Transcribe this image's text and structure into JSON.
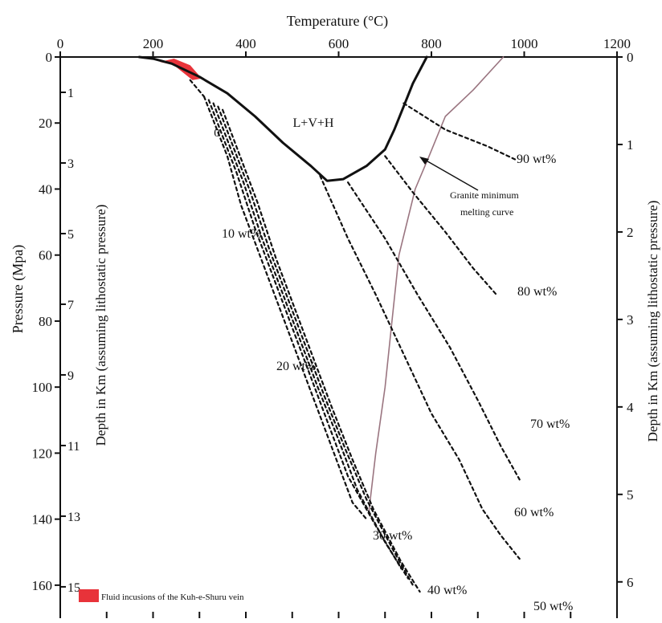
{
  "chart_data": {
    "type": "line",
    "title": "",
    "xlabel": "Temperature (°C)",
    "ylabel": "Pressure (Mpa)",
    "inner_depth_label": "Depth in Km (assuming lithostatic pressure)",
    "right_label": "Depth in Km (assuming lithostatic pressure)",
    "xlim": [
      0,
      1200
    ],
    "ylim": [
      0,
      170
    ],
    "y_inverted": true,
    "x_ticks": [
      0,
      200,
      400,
      600,
      800,
      1000,
      1200
    ],
    "y_ticks": [
      0,
      20,
      40,
      60,
      80,
      100,
      120,
      140,
      160
    ],
    "inner_depth_ticks": [
      {
        "label": "1",
        "p": 10.7
      },
      {
        "label": "3",
        "p": 32.1
      },
      {
        "label": "5",
        "p": 53.5
      },
      {
        "label": "7",
        "p": 74.9
      },
      {
        "label": "9",
        "p": 96.3
      },
      {
        "label": "11",
        "p": 117.7
      },
      {
        "label": "13",
        "p": 139.1
      },
      {
        "label": "15",
        "p": 160.5
      }
    ],
    "right_depth_ticks": [
      {
        "label": "0",
        "p": 0
      },
      {
        "label": "1",
        "p": 26.5
      },
      {
        "label": "2",
        "p": 53
      },
      {
        "label": "3",
        "p": 79.5
      },
      {
        "label": "4",
        "p": 106
      },
      {
        "label": "5",
        "p": 132.5
      },
      {
        "label": "6",
        "p": 159
      }
    ],
    "grid": false,
    "series": [
      {
        "name": "L+V+H",
        "style": "solid-black",
        "points": [
          [
            170,
            0
          ],
          [
            200,
            0.5
          ],
          [
            240,
            2
          ],
          [
            300,
            6
          ],
          [
            360,
            11
          ],
          [
            420,
            18
          ],
          [
            480,
            26
          ],
          [
            540,
            33
          ],
          [
            575,
            37.5
          ],
          [
            610,
            37
          ],
          [
            660,
            33
          ],
          [
            700,
            28
          ],
          [
            720,
            22
          ],
          [
            740,
            15
          ],
          [
            760,
            8
          ],
          [
            790,
            0
          ]
        ]
      },
      {
        "name": "Granite minimum melting curve",
        "style": "solid-mauve",
        "points": [
          [
            955,
            0
          ],
          [
            890,
            10
          ],
          [
            830,
            18
          ],
          [
            795,
            30
          ],
          [
            765,
            40
          ],
          [
            730,
            60
          ],
          [
            715,
            80
          ],
          [
            700,
            100
          ],
          [
            680,
            120
          ],
          [
            665,
            138
          ]
        ]
      },
      {
        "name": "0",
        "style": "dotted",
        "points": [
          [
            280,
            7
          ],
          [
            310,
            12
          ]
        ]
      },
      {
        "name": "10 wt%",
        "style": "dotted",
        "points": [
          [
            310,
            12
          ],
          [
            360,
            30
          ],
          [
            390,
            45
          ],
          [
            430,
            60
          ],
          [
            470,
            75
          ],
          [
            510,
            90
          ],
          [
            550,
            105
          ],
          [
            590,
            120
          ],
          [
            630,
            135
          ],
          [
            660,
            140
          ]
        ]
      },
      {
        "name": "20 wt%",
        "style": "dotted",
        "points": [
          [
            320,
            13
          ],
          [
            380,
            35
          ],
          [
            420,
            52
          ],
          [
            460,
            67
          ],
          [
            500,
            82
          ],
          [
            540,
            97
          ],
          [
            580,
            112
          ],
          [
            620,
            127
          ],
          [
            680,
            142
          ],
          [
            735,
            155
          ]
        ]
      },
      {
        "name": "30 wt%",
        "style": "dotted",
        "points": [
          [
            330,
            14
          ],
          [
            395,
            38
          ],
          [
            435,
            55
          ],
          [
            475,
            70
          ],
          [
            515,
            85
          ],
          [
            555,
            100
          ],
          [
            600,
            116
          ],
          [
            640,
            131
          ],
          [
            700,
            147
          ],
          [
            750,
            158
          ]
        ]
      },
      {
        "name": "40 wt%",
        "style": "dotted",
        "points": [
          [
            340,
            15
          ],
          [
            410,
            41
          ],
          [
            450,
            58
          ],
          [
            490,
            73
          ],
          [
            530,
            88
          ],
          [
            570,
            103
          ],
          [
            615,
            119
          ],
          [
            660,
            134
          ],
          [
            720,
            150
          ],
          [
            760,
            160
          ]
        ]
      },
      {
        "name": "50 wt%",
        "style": "dotted",
        "points": [
          [
            350,
            16
          ],
          [
            425,
            44
          ],
          [
            465,
            61
          ],
          [
            505,
            76
          ],
          [
            545,
            91
          ],
          [
            585,
            106
          ],
          [
            630,
            122
          ],
          [
            675,
            137
          ],
          [
            735,
            153
          ],
          [
            775,
            162
          ]
        ]
      },
      {
        "name": "60 wt%",
        "style": "dotted",
        "points": [
          [
            560,
            36
          ],
          [
            620,
            55
          ],
          [
            680,
            72
          ],
          [
            740,
            90
          ],
          [
            800,
            108
          ],
          [
            860,
            122
          ],
          [
            910,
            137
          ],
          [
            950,
            145
          ],
          [
            990,
            152
          ]
        ]
      },
      {
        "name": "70 wt%",
        "style": "dotted",
        "points": [
          [
            620,
            38
          ],
          [
            700,
            55
          ],
          [
            770,
            72
          ],
          [
            840,
            88
          ],
          [
            900,
            104
          ],
          [
            950,
            118
          ],
          [
            990,
            128
          ]
        ]
      },
      {
        "name": "80 wt%",
        "style": "dotted",
        "points": [
          [
            700,
            30
          ],
          [
            760,
            41
          ],
          [
            830,
            53
          ],
          [
            890,
            64
          ],
          [
            940,
            72
          ]
        ]
      },
      {
        "name": "90 wt%",
        "style": "dotted",
        "points": [
          [
            740,
            14
          ],
          [
            830,
            22
          ],
          [
            920,
            27
          ],
          [
            980,
            31
          ]
        ]
      }
    ],
    "annotations": {
      "phase_label": "L+V+H",
      "zero_label": "0",
      "granite_line1": "Granite minimum",
      "granite_line2": "melting curve",
      "legend_text": "Fluid incusions of the Kuh-e-Shuru vein"
    },
    "fluid_inclusion_region": [
      [
        215,
        1.5
      ],
      [
        245,
        2.5
      ],
      [
        285,
        7
      ],
      [
        305,
        6.5
      ],
      [
        280,
        2.5
      ],
      [
        245,
        0.5
      ]
    ],
    "colors": {
      "fluid_inclusion": "#e8333a",
      "granite_curve": "#9a7580",
      "lines": "#111111"
    }
  }
}
